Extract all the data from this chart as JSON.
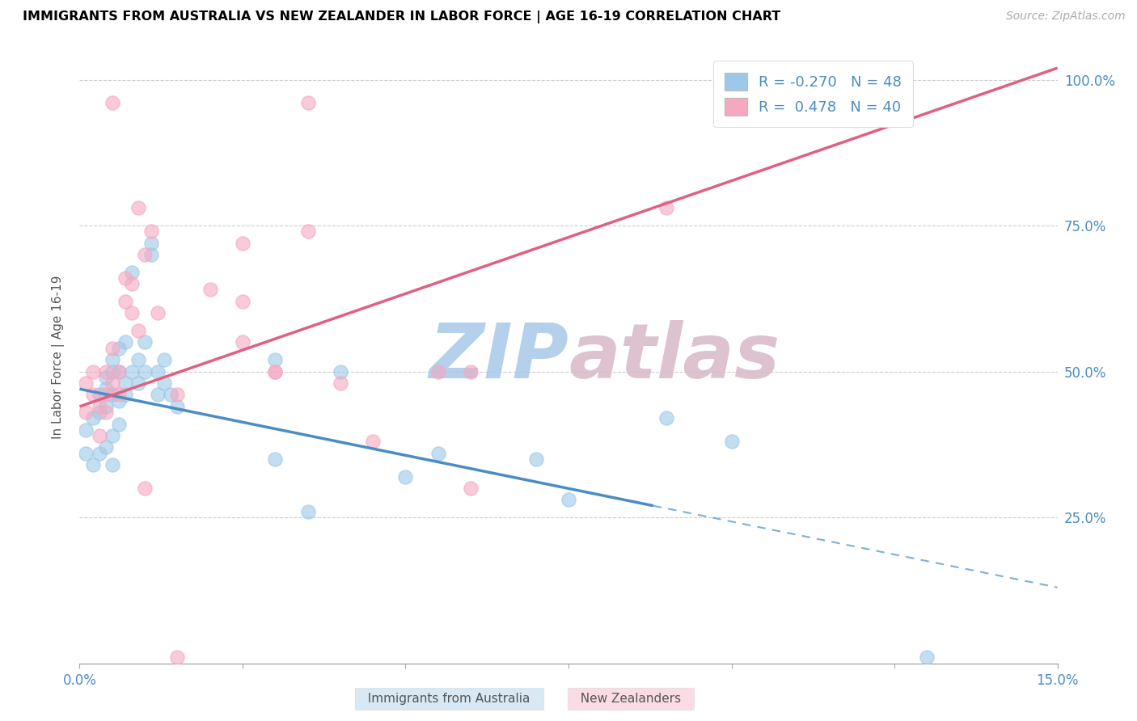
{
  "title": "IMMIGRANTS FROM AUSTRALIA VS NEW ZEALANDER IN LABOR FORCE | AGE 16-19 CORRELATION CHART",
  "source": "Source: ZipAtlas.com",
  "ylabel": "In Labor Force | Age 16-19",
  "xmin": 0.0,
  "xmax": 0.15,
  "ymin": 0.0,
  "ymax": 1.05,
  "yticks": [
    0.25,
    0.5,
    0.75,
    1.0
  ],
  "ytick_labels": [
    "25.0%",
    "50.0%",
    "75.0%",
    "100.0%"
  ],
  "xticks": [
    0.0,
    0.025,
    0.05,
    0.075,
    0.1,
    0.125,
    0.15
  ],
  "xtick_labels": [
    "0.0%",
    "",
    "",
    "",
    "",
    "",
    "15.0%"
  ],
  "legend_r_blue": "-0.270",
  "legend_n_blue": "48",
  "legend_r_pink": "0.478",
  "legend_n_pink": "40",
  "blue_color": "#9ec8e8",
  "pink_color": "#f5a8c0",
  "blue_line_color": "#4a8cc4",
  "pink_line_color": "#e06080",
  "blue_scatter_x": [
    0.001,
    0.001,
    0.002,
    0.002,
    0.003,
    0.003,
    0.003,
    0.004,
    0.004,
    0.004,
    0.004,
    0.005,
    0.005,
    0.005,
    0.005,
    0.005,
    0.006,
    0.006,
    0.006,
    0.006,
    0.007,
    0.007,
    0.007,
    0.008,
    0.008,
    0.009,
    0.009,
    0.01,
    0.01,
    0.011,
    0.011,
    0.012,
    0.012,
    0.013,
    0.013,
    0.014,
    0.015,
    0.03,
    0.03,
    0.035,
    0.04,
    0.05,
    0.055,
    0.07,
    0.075,
    0.09,
    0.1,
    0.13
  ],
  "blue_scatter_y": [
    0.36,
    0.4,
    0.34,
    0.42,
    0.36,
    0.43,
    0.46,
    0.37,
    0.44,
    0.47,
    0.49,
    0.34,
    0.39,
    0.46,
    0.5,
    0.52,
    0.41,
    0.45,
    0.5,
    0.54,
    0.46,
    0.48,
    0.55,
    0.5,
    0.67,
    0.48,
    0.52,
    0.5,
    0.55,
    0.7,
    0.72,
    0.46,
    0.5,
    0.48,
    0.52,
    0.46,
    0.44,
    0.52,
    0.35,
    0.26,
    0.5,
    0.32,
    0.36,
    0.35,
    0.28,
    0.42,
    0.38,
    0.01
  ],
  "pink_scatter_x": [
    0.001,
    0.001,
    0.002,
    0.002,
    0.003,
    0.003,
    0.004,
    0.004,
    0.004,
    0.005,
    0.005,
    0.006,
    0.006,
    0.007,
    0.007,
    0.008,
    0.008,
    0.009,
    0.009,
    0.01,
    0.011,
    0.012,
    0.015,
    0.02,
    0.025,
    0.025,
    0.03,
    0.035,
    0.035,
    0.04,
    0.045,
    0.055,
    0.06,
    0.09,
    0.005,
    0.01,
    0.015,
    0.025,
    0.03,
    0.06
  ],
  "pink_scatter_y": [
    0.43,
    0.48,
    0.46,
    0.5,
    0.39,
    0.44,
    0.43,
    0.46,
    0.5,
    0.48,
    0.54,
    0.46,
    0.5,
    0.62,
    0.66,
    0.6,
    0.65,
    0.57,
    0.78,
    0.7,
    0.74,
    0.6,
    0.46,
    0.64,
    0.62,
    0.72,
    0.5,
    0.74,
    0.96,
    0.48,
    0.38,
    0.5,
    0.3,
    0.78,
    0.96,
    0.3,
    0.01,
    0.55,
    0.5,
    0.5
  ],
  "trend_blue_x0": 0.0,
  "trend_blue_y0": 0.47,
  "trend_blue_x1": 0.088,
  "trend_blue_y1": 0.27,
  "trend_blue_dash_x0": 0.088,
  "trend_blue_dash_y0": 0.27,
  "trend_blue_dash_x1": 0.15,
  "trend_blue_dash_y1": 0.13,
  "trend_pink_x0": 0.0,
  "trend_pink_y0": 0.44,
  "trend_pink_x1": 0.15,
  "trend_pink_y1": 1.02
}
